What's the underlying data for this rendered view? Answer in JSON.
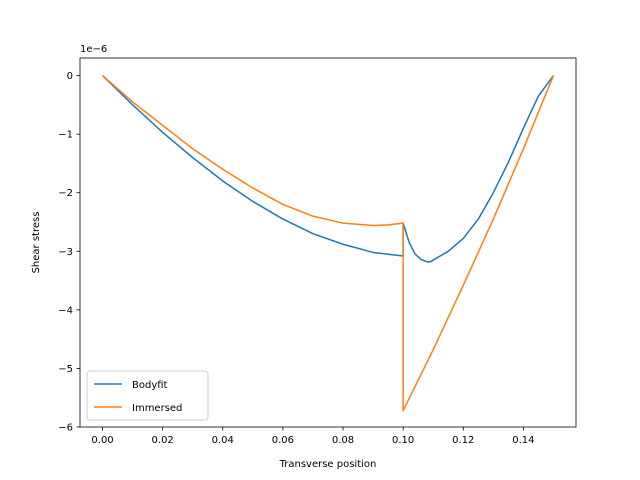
{
  "chart_data": {
    "type": "line",
    "xlabel": "Transverse position",
    "ylabel": "Shear stress",
    "offset_text": "1e−6",
    "xlim": [
      -0.0075,
      0.1575
    ],
    "ylim": [
      -6.0,
      0.3
    ],
    "xticks": [
      0.0,
      0.02,
      0.04,
      0.06,
      0.08,
      0.1,
      0.12,
      0.14
    ],
    "xtick_labels": [
      "0.00",
      "0.02",
      "0.04",
      "0.06",
      "0.08",
      "0.10",
      "0.12",
      "0.14"
    ],
    "yticks": [
      0,
      -1,
      -2,
      -3,
      -4,
      -5,
      -6
    ],
    "ytick_labels": [
      "0",
      "−1",
      "−2",
      "−3",
      "−4",
      "−5",
      "−6"
    ],
    "grid": false,
    "legend_position": "lower-left",
    "series": [
      {
        "name": "Bodyfit",
        "color": "#1f77b4",
        "x": [
          0.0,
          0.01,
          0.02,
          0.03,
          0.04,
          0.05,
          0.06,
          0.07,
          0.08,
          0.09,
          0.1,
          0.1,
          0.102,
          0.104,
          0.106,
          0.108,
          0.109,
          0.11,
          0.115,
          0.12,
          0.125,
          0.13,
          0.135,
          0.14,
          0.145,
          0.15
        ],
        "y": [
          0.0,
          -0.5,
          -0.97,
          -1.4,
          -1.8,
          -2.15,
          -2.45,
          -2.7,
          -2.88,
          -3.02,
          -3.08,
          -2.52,
          -2.85,
          -3.05,
          -3.14,
          -3.18,
          -3.18,
          -3.15,
          -3.0,
          -2.78,
          -2.45,
          -2.0,
          -1.48,
          -0.9,
          -0.35,
          0.0
        ]
      },
      {
        "name": "Immersed",
        "color": "#ff7f0e",
        "x": [
          0.0,
          0.01,
          0.02,
          0.03,
          0.04,
          0.05,
          0.06,
          0.07,
          0.08,
          0.09,
          0.095,
          0.1,
          0.1,
          0.11,
          0.12,
          0.13,
          0.14,
          0.15
        ],
        "y": [
          0.0,
          -0.45,
          -0.85,
          -1.25,
          -1.6,
          -1.92,
          -2.2,
          -2.4,
          -2.52,
          -2.56,
          -2.55,
          -2.52,
          -5.72,
          -4.68,
          -3.58,
          -2.45,
          -1.25,
          0.0
        ]
      }
    ]
  }
}
